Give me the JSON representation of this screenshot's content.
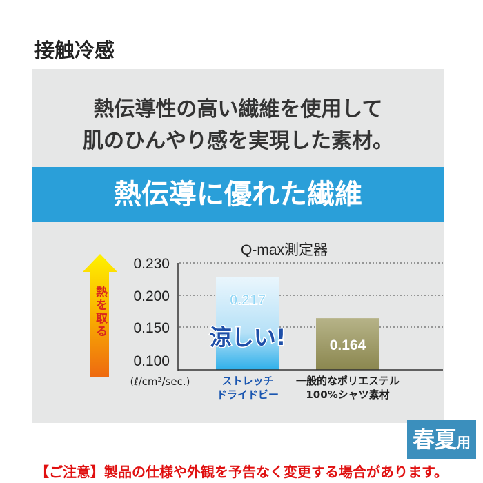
{
  "header": {
    "title": "接触冷感"
  },
  "lead": {
    "line1": "熱伝導性の高い繊維を使用して",
    "line2": "肌のひんやり感を実現した素材。"
  },
  "banner": {
    "text": "熱伝導に優れた繊維"
  },
  "badge": {
    "main": "春夏用",
    "suffix": "用",
    "prefix": "春夏"
  },
  "notice": "【ご注意】製品の仕様や外観を予告なく変更する場合があります。",
  "colors": {
    "bar_highlight": "#5cc3f0",
    "bar_other": "#8f8c5a",
    "banner": "#2a9fd9",
    "notice": "#e01010"
  },
  "chart_data": {
    "type": "bar",
    "title": "Q-max測定器",
    "ylabel": "(ℓ/cm²/sec.)",
    "arrow_label": "熱を取る",
    "yticks": [
      "0.230",
      "0.200",
      "0.150",
      "0.100"
    ],
    "ylim": [
      0.1,
      0.23
    ],
    "grid": "dotted",
    "categories": [
      [
        "ストレッチ",
        "ドライドビー"
      ],
      [
        "一般的なポリエステル",
        "100%シャツ素材"
      ]
    ],
    "values": [
      0.217,
      0.164
    ],
    "value_labels": [
      "0.217",
      "0.164"
    ],
    "callout": "涼しい!"
  }
}
